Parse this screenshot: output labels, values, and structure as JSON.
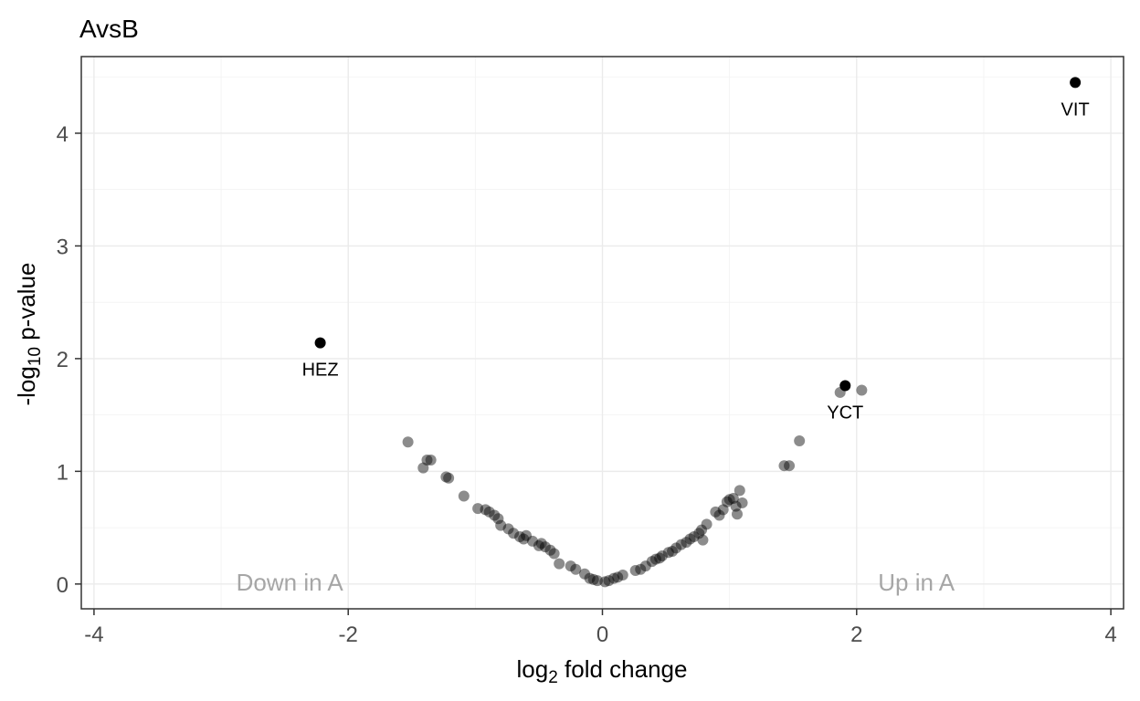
{
  "chart_data": {
    "type": "scatter",
    "title": "AvsB",
    "xlabel": {
      "prefix": "log",
      "sub": "2",
      "suffix": " fold change"
    },
    "ylabel": {
      "prefix": "-log",
      "sub": "10",
      "suffix": " p-value"
    },
    "xlim": [
      -4.1,
      4.1
    ],
    "ylim": [
      -0.22,
      4.68
    ],
    "xticks": [
      -4,
      -2,
      0,
      2,
      4
    ],
    "xtick_labels": [
      "-4",
      "-2",
      "0",
      "2",
      "4"
    ],
    "yticks": [
      0,
      1,
      2,
      3,
      4
    ],
    "ytick_labels": [
      "0",
      "1",
      "2",
      "3",
      "4"
    ],
    "grid": true,
    "annotations": [
      {
        "text": "Down in A",
        "x": -2.46,
        "y": -0.06
      },
      {
        "text": "Up in A",
        "x": 2.47,
        "y": -0.06
      }
    ],
    "colors": {
      "highlight": "#000000",
      "other": "#000000",
      "other_opacity": 0.45,
      "annotation": "#a6a6a6"
    },
    "highlighted": [
      {
        "label": "VIT",
        "x": 3.72,
        "y": 4.45
      },
      {
        "label": "HEZ",
        "x": -2.22,
        "y": 2.14
      },
      {
        "label": "YCT",
        "x": 1.91,
        "y": 1.76
      }
    ],
    "points": [
      [
        -1.53,
        1.26
      ],
      [
        -1.38,
        1.1
      ],
      [
        -1.35,
        1.1
      ],
      [
        -1.41,
        1.03
      ],
      [
        -1.21,
        0.94
      ],
      [
        -1.23,
        0.95
      ],
      [
        -1.09,
        0.78
      ],
      [
        -0.98,
        0.67
      ],
      [
        -0.92,
        0.66
      ],
      [
        -0.89,
        0.64
      ],
      [
        -0.85,
        0.61
      ],
      [
        -0.82,
        0.58
      ],
      [
        -0.8,
        0.52
      ],
      [
        -0.74,
        0.49
      ],
      [
        -0.7,
        0.45
      ],
      [
        -0.65,
        0.42
      ],
      [
        -0.62,
        0.4
      ],
      [
        -0.6,
        0.43
      ],
      [
        -0.55,
        0.38
      ],
      [
        -0.5,
        0.34
      ],
      [
        -0.48,
        0.36
      ],
      [
        -0.45,
        0.33
      ],
      [
        -0.41,
        0.3
      ],
      [
        -0.38,
        0.27
      ],
      [
        -0.34,
        0.18
      ],
      [
        -0.25,
        0.16
      ],
      [
        -0.21,
        0.13
      ],
      [
        -0.14,
        0.09
      ],
      [
        -0.1,
        0.05
      ],
      [
        -0.07,
        0.04
      ],
      [
        -0.04,
        0.03
      ],
      [
        0.02,
        0.02
      ],
      [
        0.05,
        0.03
      ],
      [
        0.09,
        0.05
      ],
      [
        0.12,
        0.06
      ],
      [
        0.16,
        0.08
      ],
      [
        0.26,
        0.12
      ],
      [
        0.3,
        0.13
      ],
      [
        0.34,
        0.16
      ],
      [
        0.39,
        0.2
      ],
      [
        0.42,
        0.22
      ],
      [
        0.45,
        0.23
      ],
      [
        0.47,
        0.25
      ],
      [
        0.52,
        0.28
      ],
      [
        0.55,
        0.29
      ],
      [
        0.58,
        0.32
      ],
      [
        0.62,
        0.35
      ],
      [
        0.66,
        0.37
      ],
      [
        0.69,
        0.4
      ],
      [
        0.72,
        0.42
      ],
      [
        0.76,
        0.45
      ],
      [
        0.78,
        0.48
      ],
      [
        0.82,
        0.53
      ],
      [
        0.79,
        0.39
      ],
      [
        0.89,
        0.64
      ],
      [
        0.92,
        0.61
      ],
      [
        0.95,
        0.66
      ],
      [
        0.98,
        0.73
      ],
      [
        1.0,
        0.75
      ],
      [
        1.03,
        0.76
      ],
      [
        1.05,
        0.69
      ],
      [
        1.1,
        0.72
      ],
      [
        1.08,
        0.83
      ],
      [
        1.06,
        0.62
      ],
      [
        1.43,
        1.05
      ],
      [
        1.47,
        1.05
      ],
      [
        1.55,
        1.27
      ],
      [
        1.87,
        1.7
      ],
      [
        2.04,
        1.72
      ]
    ]
  }
}
